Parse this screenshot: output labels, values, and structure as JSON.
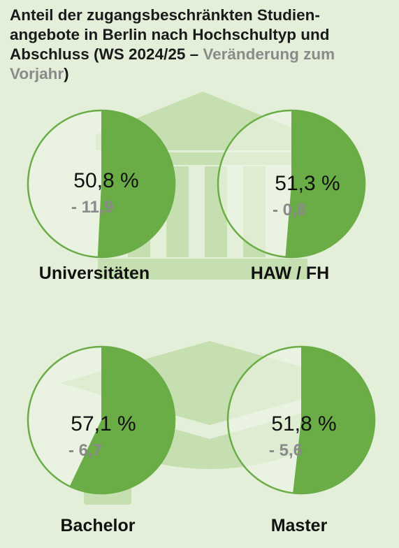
{
  "title": {
    "main": "Anteil der zugangsbeschränkten Studien-angebote in Berlin nach Hochschultyp und Abschluss (WS 2024/25 – ",
    "sub": "Veränderung zum Vorjahr",
    "close": ")"
  },
  "colors": {
    "background": "#e4efda",
    "share": "#6aac45",
    "ring": "#6aac45",
    "rest": "#eef5e7",
    "icon": "#c5dfb0",
    "change_text": "#8a8a8a"
  },
  "chart_data": {
    "type": "pie",
    "unit": "%",
    "charts": [
      {
        "label": "Universitäten",
        "value": 50.8,
        "value_text": "50,8 %",
        "change": -11.9,
        "change_text": "- 11,9"
      },
      {
        "label": "HAW / FH",
        "value": 51.3,
        "value_text": "51,3 %",
        "change": -0.8,
        "change_text": "- 0,8"
      },
      {
        "label": "Bachelor",
        "value": 57.1,
        "value_text": "57,1 %",
        "change": -6.7,
        "change_text": "- 6,7"
      },
      {
        "label": "Master",
        "value": 51.8,
        "value_text": "51,8 %",
        "change": -5.6,
        "change_text": "- 5,6"
      }
    ]
  },
  "icons": {
    "top": "university-building-icon",
    "bottom": "graduation-cap-icon"
  }
}
